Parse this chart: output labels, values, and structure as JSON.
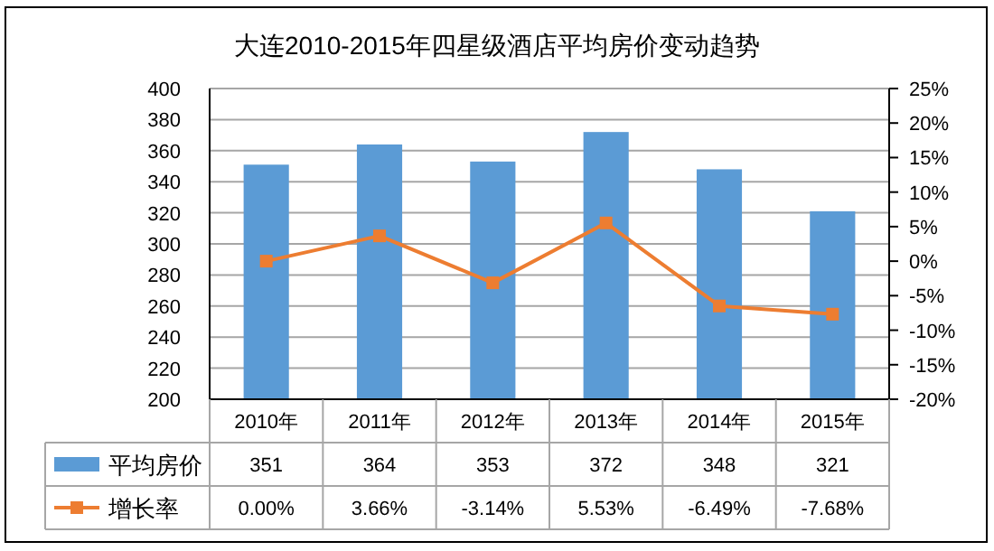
{
  "chart_data": {
    "type": "bar",
    "title": "大连2010-2015年四星级酒店平均房价变动趋势",
    "categories": [
      "2010年",
      "2011年",
      "2012年",
      "2013年",
      "2014年",
      "2015年"
    ],
    "series": [
      {
        "name": "平均房价",
        "color": "#5b9bd5",
        "values": [
          351,
          364,
          353,
          372,
          348,
          321
        ],
        "value_labels": [
          "351",
          "364",
          "353",
          "372",
          "348",
          "321"
        ]
      },
      {
        "name": "增长率",
        "type": "line",
        "axis": "y2",
        "color": "#ed7d31",
        "marker": "square",
        "line_style": "solid",
        "values": [
          0.0,
          3.66,
          -3.14,
          5.53,
          -6.49,
          -7.68
        ],
        "value_labels": [
          "0.00%",
          "3.66%",
          "-3.14%",
          "5.53%",
          "-6.49%",
          "-7.68%"
        ]
      }
    ],
    "ylim": [
      200,
      400
    ],
    "yticks": [
      200,
      220,
      240,
      260,
      280,
      300,
      320,
      340,
      360,
      380,
      400
    ],
    "y2lim": [
      -20,
      25
    ],
    "y2ticks": [
      {
        "value": -20,
        "label": "-20%"
      },
      {
        "value": -15,
        "label": "-15%"
      },
      {
        "value": -10,
        "label": "-10%"
      },
      {
        "value": -5,
        "label": "-5%"
      },
      {
        "value": 0,
        "label": "0%"
      },
      {
        "value": 5,
        "label": "5%"
      },
      {
        "value": 10,
        "label": "10%"
      },
      {
        "value": 15,
        "label": "15%"
      },
      {
        "value": 20,
        "label": "20%"
      },
      {
        "value": 25,
        "label": "25%"
      }
    ],
    "grid": "y",
    "legend": "bottom"
  }
}
